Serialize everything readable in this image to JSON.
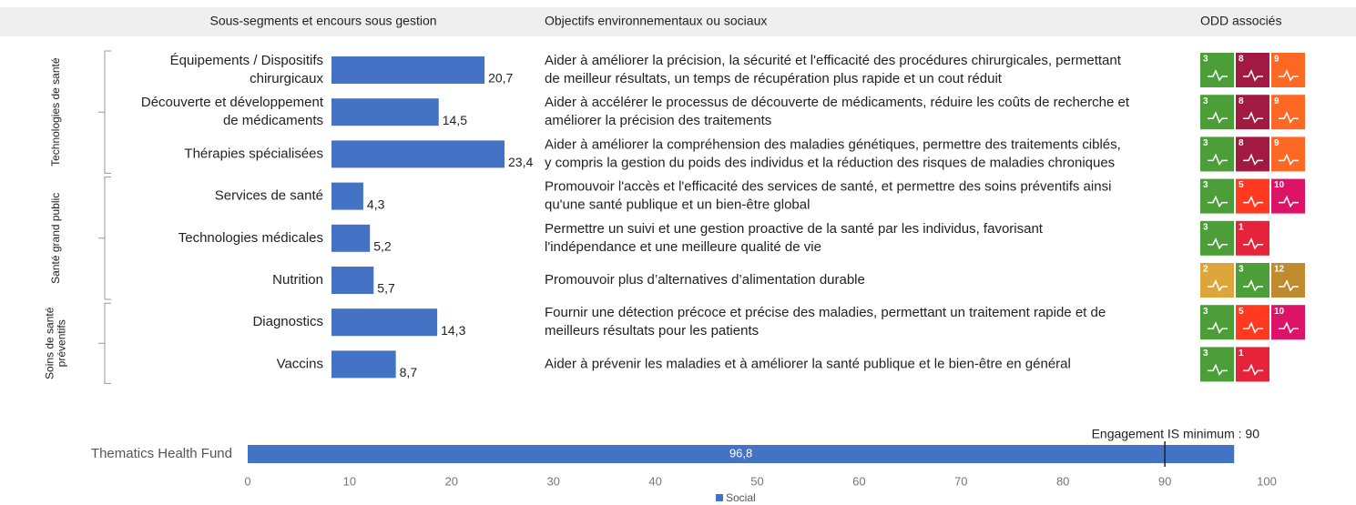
{
  "header": {
    "columns": [
      "Sous-segments et encours sous gestion",
      "Objectifs environnementaux ou sociaux",
      "ODD associés"
    ]
  },
  "odd_colors": {
    "1": "#e5243b",
    "2": "#dda63a",
    "3": "#4c9f38",
    "5": "#ff3a21",
    "8": "#a21942",
    "9": "#fd6925",
    "10": "#dd1367",
    "12": "#bf8b2e"
  },
  "chart_data": [
    {
      "type": "bar",
      "orientation": "horizontal",
      "color": "#4472c4",
      "groups": [
        {
          "name": [
            "Technologies de santé"
          ],
          "categories": [
            [
              "Équipements / Dispositifs",
              "chirurgicaux"
            ],
            [
              "Découverte et développement",
              "de médicaments"
            ],
            [
              "Thérapies spécialisées"
            ]
          ],
          "values": [
            20.7,
            14.5,
            23.4
          ],
          "value_labels": [
            "20,7",
            "14,5",
            "23,4"
          ],
          "objectives": [
            [
              "Aider à améliorer la précision, la sécurité et l'efficacité des procédures chirurgicales, permettant",
              "de meilleur résultats, un temps de récupération plus rapide et un cout réduit"
            ],
            [
              "Aider à accélérer le processus de découverte de médicaments, réduire les coûts de recherche et",
              "améliorer la précision des traitements"
            ],
            [
              "Aider à améliorer la compréhension des maladies génétiques, permettre des traitements ciblés,",
              "y compris la gestion du poids des individus et la réduction des risques de maladies chroniques"
            ]
          ],
          "odd": [
            [
              3,
              8,
              9
            ],
            [
              3,
              8,
              9
            ],
            [
              3,
              8,
              9
            ]
          ]
        },
        {
          "name": [
            "Santé grand public"
          ],
          "categories": [
            [
              "Services de santé"
            ],
            [
              "Technologies médicales"
            ],
            [
              "Nutrition"
            ]
          ],
          "values": [
            4.3,
            5.2,
            5.7
          ],
          "value_labels": [
            "4,3",
            "5,2",
            "5,7"
          ],
          "objectives": [
            [
              "Promouvoir l'accès et l'efficacité des services de santé, et permettre des soins préventifs ainsi",
              "qu'une santé publique et un bien-être global"
            ],
            [
              "Permettre un suivi et une gestion proactive de la santé par les individus, favorisant",
              "l'indépendance et une meilleure qualité de vie"
            ],
            [
              "Promouvoir plus d’alternatives d’alimentation durable"
            ]
          ],
          "odd": [
            [
              3,
              5,
              10
            ],
            [
              3,
              1
            ],
            [
              2,
              3,
              12
            ]
          ]
        },
        {
          "name": [
            "Soins de santé",
            "préventifs"
          ],
          "categories": [
            [
              "Diagnostics"
            ],
            [
              "Vaccins"
            ]
          ],
          "values": [
            14.3,
            8.7
          ],
          "value_labels": [
            "14,3",
            "8,7"
          ],
          "objectives": [
            [
              "Fournir une détection précoce et précise des maladies, permettant un traitement rapide et de",
              "meilleurs résultats pour les patients"
            ],
            [
              "Aider à prévenir les maladies et à améliorer la santé publique et le bien-être en général"
            ]
          ],
          "odd": [
            [
              3,
              5,
              10
            ],
            [
              3,
              1
            ]
          ]
        }
      ]
    },
    {
      "type": "bar",
      "orientation": "horizontal",
      "categories": [
        "Thematics Health Fund"
      ],
      "series": [
        {
          "name": "Social",
          "color": "#4472c4",
          "values": [
            96.8
          ],
          "value_labels": [
            "96,8"
          ]
        }
      ],
      "xlim": [
        0,
        100
      ],
      "xticks": [
        0,
        10,
        20,
        30,
        40,
        50,
        60,
        70,
        80,
        90,
        100
      ],
      "annotations": [
        {
          "text": "Engagement IS minimum : 90",
          "value": 90
        }
      ]
    }
  ]
}
